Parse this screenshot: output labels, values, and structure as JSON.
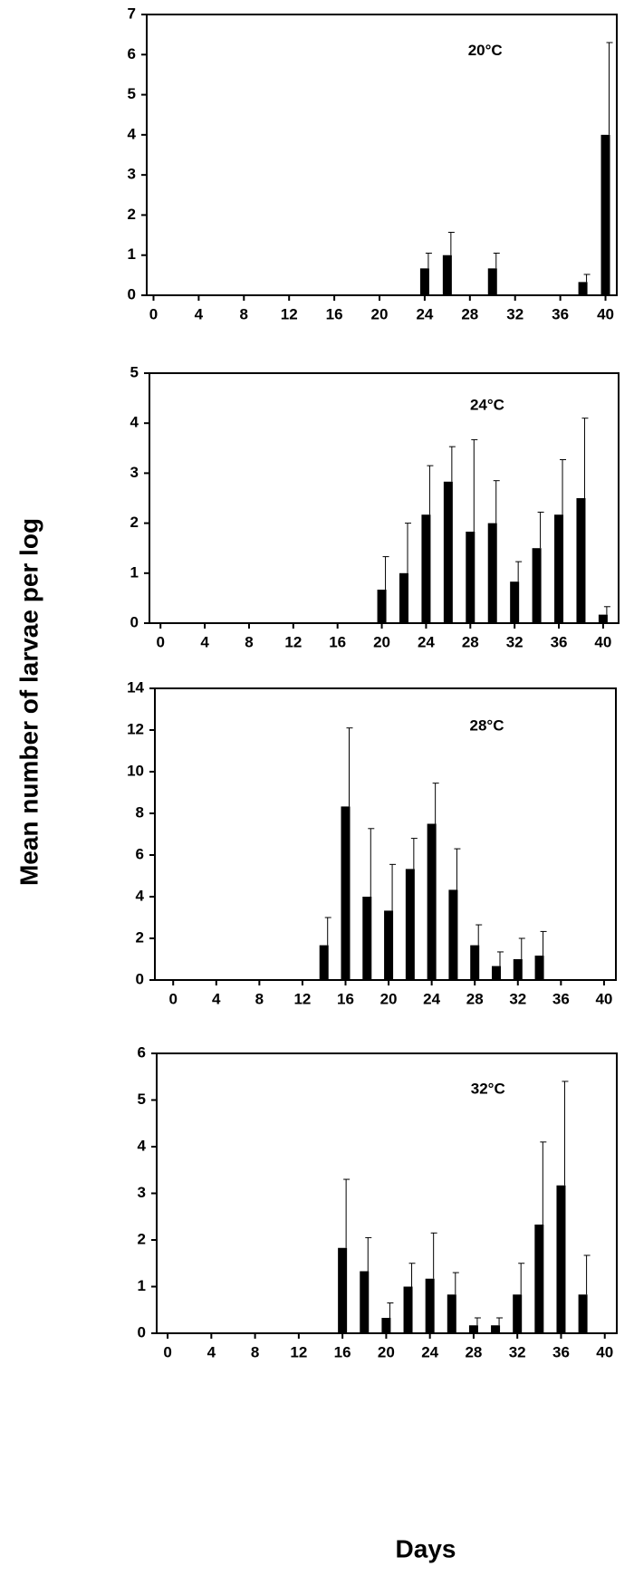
{
  "ylabel": "Mean number of larvae per log",
  "xlabel": "Days",
  "chart_data": [
    {
      "type": "bar",
      "annotation": "20°C",
      "color": "#000000",
      "x": [
        24,
        26,
        30,
        38,
        40
      ],
      "values": [
        0.67,
        1.0,
        0.67,
        0.33,
        4.0
      ],
      "errors": [
        0.38,
        0.57,
        0.38,
        0.19,
        2.3
      ],
      "xlim": [
        -0.6,
        41
      ],
      "xticks": [
        0,
        4,
        8,
        12,
        16,
        20,
        24,
        28,
        32,
        36,
        40
      ],
      "ylim": [
        0,
        7
      ],
      "yticks": [
        0,
        1,
        2,
        3,
        4,
        5,
        6,
        7
      ]
    },
    {
      "type": "bar",
      "annotation": "24°C",
      "color": "#000000",
      "x": [
        20,
        22,
        24,
        26,
        28,
        30,
        32,
        34,
        36,
        38,
        40
      ],
      "values": [
        0.67,
        1.0,
        2.17,
        2.83,
        1.83,
        2.0,
        0.83,
        1.5,
        2.17,
        2.5,
        0.17
      ],
      "errors": [
        0.66,
        1.0,
        0.98,
        0.7,
        1.84,
        0.85,
        0.4,
        0.72,
        1.1,
        1.6,
        0.16
      ],
      "xlim": [
        -1,
        41.4
      ],
      "xticks": [
        0,
        4,
        8,
        12,
        16,
        20,
        24,
        28,
        32,
        36,
        40
      ],
      "ylim": [
        0,
        5
      ],
      "yticks": [
        0,
        1,
        2,
        3,
        4,
        5
      ]
    },
    {
      "type": "bar",
      "annotation": "28°C",
      "color": "#000000",
      "x": [
        14,
        16,
        18,
        20,
        22,
        24,
        26,
        28,
        30,
        32,
        34
      ],
      "values": [
        1.67,
        8.33,
        4.0,
        3.33,
        5.33,
        7.5,
        4.33,
        1.67,
        0.67,
        1.0,
        1.17
      ],
      "errors": [
        1.33,
        3.77,
        3.27,
        2.22,
        1.47,
        1.95,
        1.97,
        0.98,
        0.68,
        1.0,
        1.16
      ],
      "xlim": [
        -1.7,
        41.1
      ],
      "xticks": [
        0,
        4,
        8,
        12,
        16,
        20,
        24,
        28,
        32,
        36,
        40
      ],
      "ylim": [
        0,
        14
      ],
      "yticks": [
        0,
        2,
        4,
        6,
        8,
        10,
        12,
        14
      ]
    },
    {
      "type": "bar",
      "annotation": "32°C",
      "color": "#000000",
      "x": [
        16,
        18,
        20,
        22,
        24,
        26,
        28,
        30,
        32,
        34,
        36,
        38
      ],
      "values": [
        1.83,
        1.33,
        0.33,
        1.0,
        1.17,
        0.83,
        0.17,
        0.17,
        0.83,
        2.33,
        3.17,
        0.83
      ],
      "errors": [
        1.47,
        0.72,
        0.32,
        0.5,
        0.98,
        0.47,
        0.16,
        0.16,
        0.67,
        1.77,
        2.23,
        0.84
      ],
      "xlim": [
        -1,
        41.1
      ],
      "xticks": [
        0,
        4,
        8,
        12,
        16,
        20,
        24,
        28,
        32,
        36,
        40
      ],
      "ylim": [
        0,
        6
      ],
      "yticks": [
        0,
        1,
        2,
        3,
        4,
        5,
        6
      ]
    }
  ]
}
